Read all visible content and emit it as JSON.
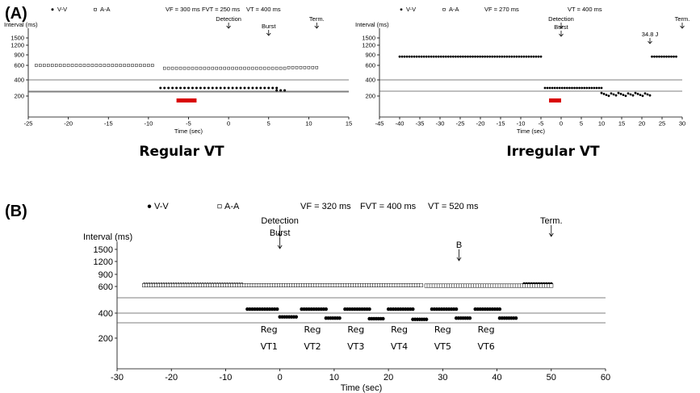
{
  "panel_a": {
    "label": "(A)",
    "left_caption": "Regular VT",
    "right_caption": "Irregular VT"
  },
  "panel_b": {
    "label": "(B)"
  },
  "chart_data": [
    {
      "type": "scatter",
      "title": "Regular VT",
      "legend": [
        "V-V",
        "A-A"
      ],
      "settings": [
        "VF = 300 ms",
        "FVT = 250 ms",
        "VT = 400 ms"
      ],
      "xlabel": "Time (sec)",
      "ylabel": "Interval (ms)",
      "xlim": [
        -25,
        15
      ],
      "xticks": [
        -25,
        -20,
        -15,
        -10,
        -5,
        0,
        5,
        10,
        15
      ],
      "yticks": [
        200,
        400,
        600,
        900,
        1200,
        1500
      ],
      "y_scale": "reciprocal",
      "thresholds": [
        300,
        250,
        400
      ],
      "therapy_bar": [
        -6.5,
        -4
      ],
      "annotations": [
        {
          "text": "Detection",
          "x": 0
        },
        {
          "text": "Burst",
          "x": 5
        },
        {
          "text": "Term.",
          "x": 11
        }
      ],
      "series": [
        {
          "name": "V-V",
          "segments": [
            {
              "from": -24,
              "to": -9.5,
              "y": 600
            },
            {
              "from": -8.5,
              "to": 6,
              "y": 300
            },
            {
              "from": 6,
              "to": 7,
              "y": 270
            },
            {
              "from": 7.5,
              "to": 11,
              "y": 570
            }
          ]
        },
        {
          "name": "A-A",
          "segments": [
            {
              "from": -24,
              "to": -9.5,
              "y": 600
            },
            {
              "from": -8,
              "to": 7,
              "y": 560
            },
            {
              "from": 7.5,
              "to": 11,
              "y": 570
            }
          ]
        }
      ]
    },
    {
      "type": "scatter",
      "title": "Irregular VT",
      "legend": [
        "V-V",
        "A-A"
      ],
      "settings": [
        "VF = 270 ms",
        "VT = 400 ms"
      ],
      "xlabel": "Time (sec)",
      "ylabel": "Interval (ms)",
      "xlim": [
        -45,
        30
      ],
      "xticks": [
        -45,
        -40,
        -35,
        -30,
        -25,
        -20,
        -15,
        -10,
        -5,
        0,
        5,
        10,
        15,
        20,
        25,
        30
      ],
      "yticks": [
        200,
        400,
        600,
        900,
        1200,
        1500
      ],
      "y_scale": "reciprocal",
      "thresholds": [
        400,
        270
      ],
      "therapy_bar": [
        -3,
        0
      ],
      "annotations": [
        {
          "text": "Detection",
          "x": 0
        },
        {
          "text": "Burst",
          "x": 0
        },
        {
          "text": "34.8 J",
          "x": 22
        },
        {
          "text": "Term.",
          "x": 30
        }
      ],
      "series": [
        {
          "name": "V-V",
          "segments": [
            {
              "from": -40,
              "to": -5,
              "y": 850
            },
            {
              "from": -4,
              "to": 10,
              "y": 300
            },
            {
              "from": 10,
              "to": 22,
              "y": 220
            },
            {
              "from": 22.5,
              "to": 28.5,
              "y": 850
            }
          ]
        }
      ]
    },
    {
      "type": "scatter",
      "title": "",
      "legend": [
        "V-V",
        "A-A"
      ],
      "settings": [
        "VF = 320 ms",
        "FVT = 400 ms",
        "VT = 520 ms"
      ],
      "xlabel": "Time (sec)",
      "ylabel": "Interval (ms)",
      "xlim": [
        -30,
        60
      ],
      "xticks": [
        -30,
        -20,
        -10,
        0,
        10,
        20,
        30,
        40,
        50,
        60
      ],
      "yticks": [
        200,
        400,
        600,
        900,
        1200,
        1500
      ],
      "y_scale": "reciprocal",
      "thresholds": [
        520,
        400,
        320
      ],
      "annotations": [
        {
          "text": "Detection",
          "x": 0
        },
        {
          "text": "Burst",
          "x": 0
        },
        {
          "text": "B",
          "x": 33
        },
        {
          "text": "Term.",
          "x": 50
        }
      ],
      "episode_labels": [
        {
          "line1": "Reg",
          "line2": "VT1",
          "x": -2
        },
        {
          "line1": "Reg",
          "line2": "VT2",
          "x": 6
        },
        {
          "line1": "Reg",
          "line2": "VT3",
          "x": 14
        },
        {
          "line1": "Reg",
          "line2": "VT4",
          "x": 22
        },
        {
          "line1": "Reg",
          "line2": "VT5",
          "x": 30
        },
        {
          "line1": "Reg",
          "line2": "VT6",
          "x": 38
        }
      ],
      "series": [
        {
          "name": "V-V",
          "segments": [
            {
              "from": -25,
              "to": -7,
              "y": 650
            },
            {
              "from": -6,
              "to": -0.5,
              "y": 430
            },
            {
              "from": 0,
              "to": 3,
              "y": 370
            },
            {
              "from": 4,
              "to": 8.5,
              "y": 430
            },
            {
              "from": 8.5,
              "to": 11,
              "y": 360
            },
            {
              "from": 12,
              "to": 16.5,
              "y": 430
            },
            {
              "from": 16.5,
              "to": 19,
              "y": 355
            },
            {
              "from": 20,
              "to": 24.5,
              "y": 430
            },
            {
              "from": 24.5,
              "to": 27,
              "y": 350
            },
            {
              "from": 28,
              "to": 32.5,
              "y": 430
            },
            {
              "from": 32.5,
              "to": 35,
              "y": 360
            },
            {
              "from": 36,
              "to": 40.5,
              "y": 430
            },
            {
              "from": 40.5,
              "to": 43.5,
              "y": 360
            },
            {
              "from": 45,
              "to": 50,
              "y": 660
            }
          ]
        },
        {
          "name": "A-A",
          "segments": [
            {
              "from": -25,
              "to": 26,
              "y": 630
            },
            {
              "from": 27,
              "to": 50,
              "y": 620
            }
          ]
        }
      ]
    }
  ]
}
